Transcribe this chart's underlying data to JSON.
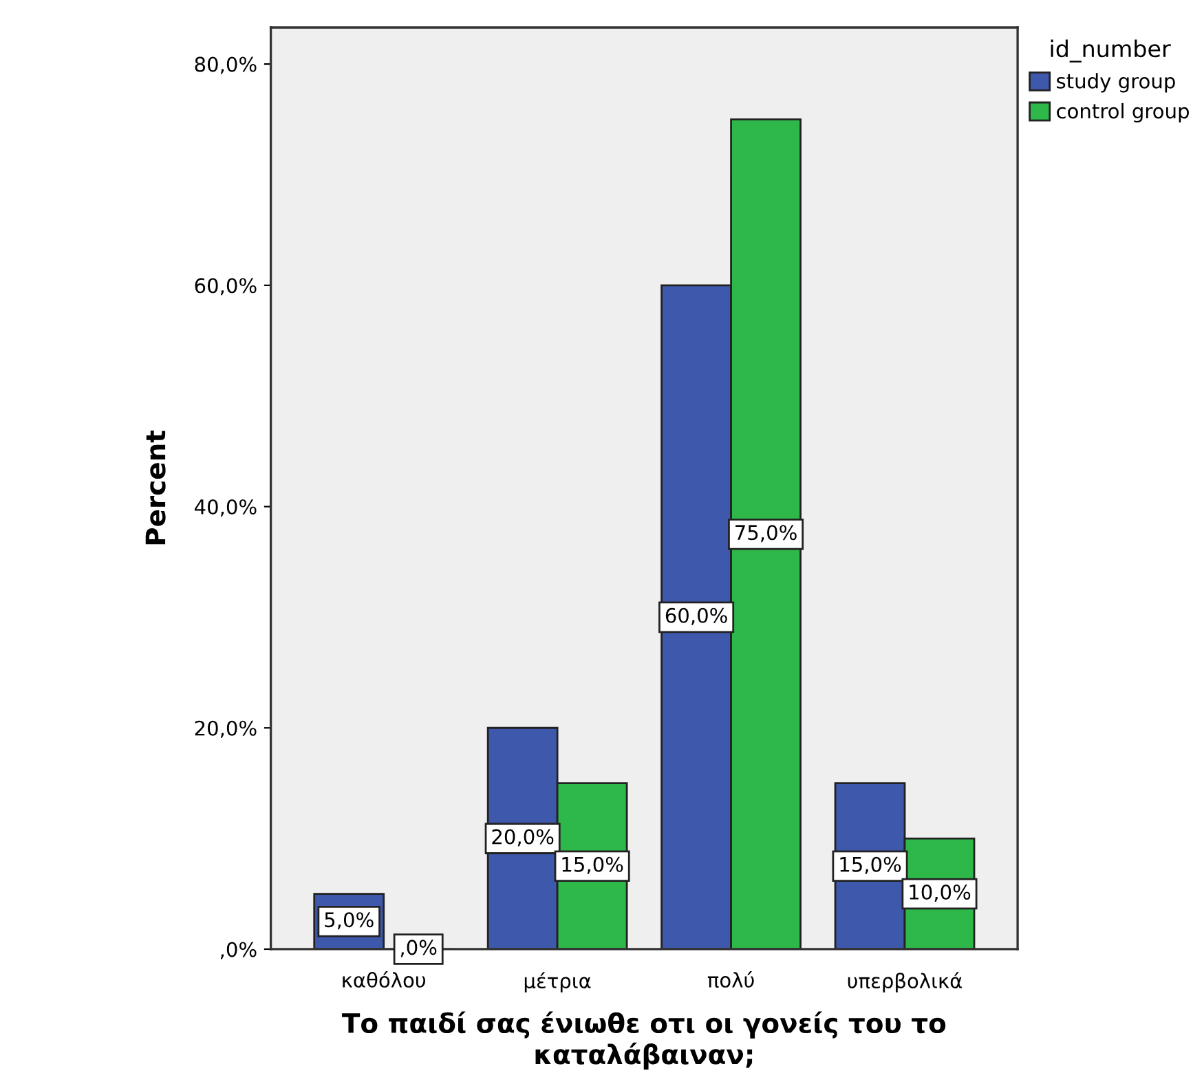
{
  "chart_data": {
    "type": "bar",
    "xlabel": "Το παιδί σας ένιωθε οτι οι γονείς του το\nκαταλάβαιναν;",
    "ylabel": "Percent",
    "legend_title": "id_number",
    "legend": "top right",
    "grid": false,
    "categories": [
      "καθόλου",
      "μέτρια",
      "πολύ",
      "υπερβολικά"
    ],
    "series": [
      {
        "name": "study group",
        "color": "#3e58ac",
        "values": [
          5,
          20,
          60,
          15
        ],
        "value_labels": [
          "5,0%",
          "20,0%",
          "60,0%",
          "15,0%"
        ]
      },
      {
        "name": "control group",
        "color": "#2fb84a",
        "values": [
          0,
          15,
          75,
          10
        ],
        "value_labels": [
          ",0%",
          "15,0%",
          "75,0%",
          "10,0%"
        ]
      }
    ],
    "ylim": [
      0,
      83.3
    ],
    "yticks": [
      {
        "value": 0,
        "label": ",0%"
      },
      {
        "value": 20,
        "label": "20,0%"
      },
      {
        "value": 40,
        "label": "40,0%"
      },
      {
        "value": 60,
        "label": "60,0%"
      },
      {
        "value": 80,
        "label": "80,0%"
      }
    ]
  }
}
